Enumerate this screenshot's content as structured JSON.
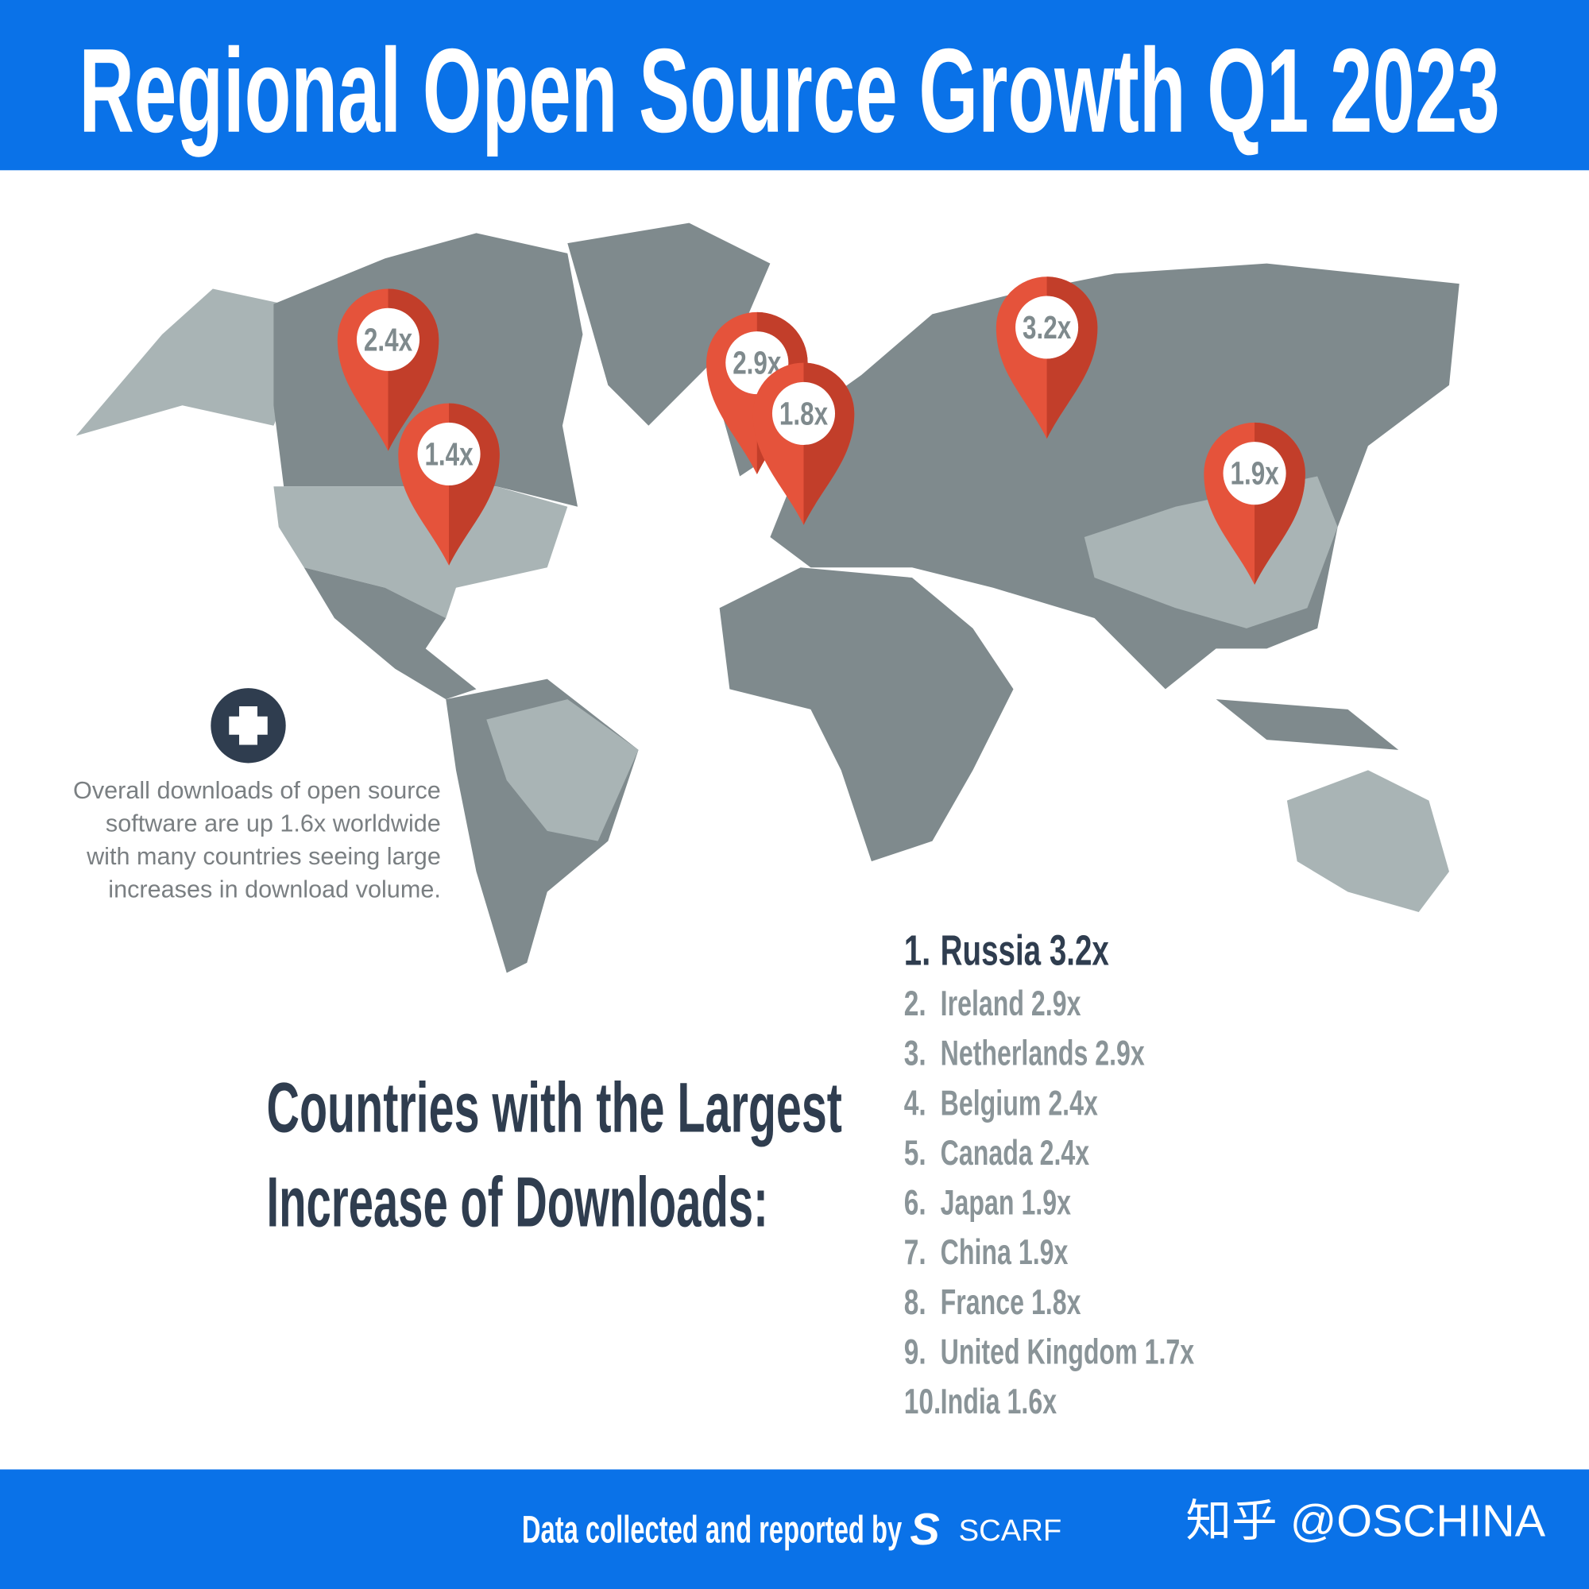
{
  "header": {
    "title": "Regional Open Source Growth Q1 2023"
  },
  "map": {
    "pins": [
      "2.4x",
      "1.4x",
      "2.9x",
      "1.8x",
      "3.2x",
      "1.9x"
    ]
  },
  "note": {
    "lines": [
      "Overall downloads of open source",
      "software are up 1.6x worldwide",
      "with many countries seeing large",
      "increases in download volume."
    ]
  },
  "ranking": {
    "heading": [
      "Countries with the Largest",
      "Increase of Downloads:"
    ],
    "items": [
      {
        "rank": "1.",
        "text": "Russia 3.2x"
      },
      {
        "rank": "2.",
        "text": "Ireland 2.9x"
      },
      {
        "rank": "3.",
        "text": "Netherlands 2.9x"
      },
      {
        "rank": "4.",
        "text": "Belgium 2.4x"
      },
      {
        "rank": "5.",
        "text": "Canada 2.4x"
      },
      {
        "rank": "6.",
        "text": "Japan 1.9x"
      },
      {
        "rank": "7.",
        "text": "China 1.9x"
      },
      {
        "rank": "8.",
        "text": "France 1.8x"
      },
      {
        "rank": "9.",
        "text": "United Kingdom 1.7x"
      },
      {
        "rank": "10.",
        "text": "India 1.6x"
      }
    ]
  },
  "footer": {
    "credit": "Data collected and reported by",
    "brand": "SCARF",
    "watermark": "知乎 @OSCHINA"
  }
}
